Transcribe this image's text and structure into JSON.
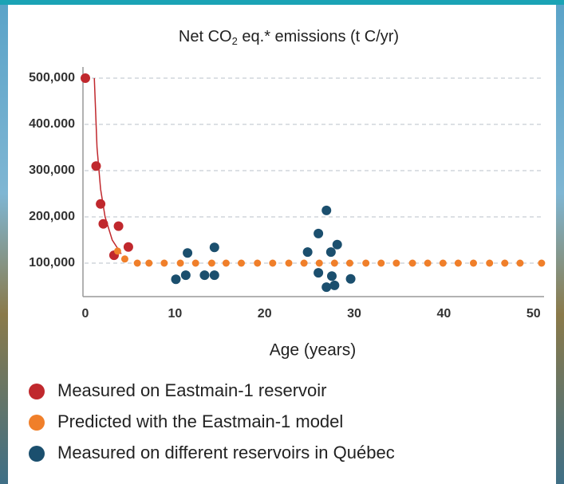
{
  "chart_data": {
    "type": "scatter",
    "title": {
      "main": "Net CO",
      "sub": "2",
      "rest": " eq.* emissions (t C/yr)"
    },
    "x_label": "Age (years)",
    "xlim": [
      0,
      51
    ],
    "xticks": [
      0,
      10,
      20,
      30,
      40,
      50
    ],
    "ylim": [
      30000,
      520000
    ],
    "yticks": [
      {
        "value": 100000,
        "label": "100,000"
      },
      {
        "value": 200000,
        "label": "200,000"
      },
      {
        "value": 300000,
        "label": "300,000"
      },
      {
        "value": 400000,
        "label": "400.000"
      },
      {
        "value": 500000,
        "label": "500,000"
      }
    ],
    "grid": true,
    "series": [
      {
        "name": "Measured on Eastmain-1 reservoir",
        "color": "#c0282d",
        "x": [
          0,
          1.2,
          1.7,
          2.0,
          3.2,
          3.7,
          4.8
        ],
        "values": [
          500000,
          310000,
          228000,
          185000,
          117000,
          180000,
          135000
        ]
      },
      {
        "name": "Predicted with the Eastmain-1 model",
        "color": "#f07f2a",
        "x": [
          3.6,
          4.4,
          5.8,
          7.1,
          8.8,
          10.6,
          12.3,
          14.1,
          15.7,
          17.4,
          19.2,
          20.9,
          22.7,
          24.4,
          26.1,
          27.8,
          29.5,
          31.3,
          33.0,
          34.7,
          36.5,
          38.2,
          39.9,
          41.6,
          43.3,
          45.1,
          46.8,
          48.5,
          50.9
        ],
        "values": [
          126000,
          109000,
          100000,
          100000,
          100000,
          100000,
          100000,
          100000,
          100000,
          100000,
          100000,
          100000,
          100000,
          100000,
          100000,
          100000,
          100000,
          100000,
          100000,
          100000,
          100000,
          100000,
          100000,
          100000,
          100000,
          100000,
          100000,
          100000,
          100000
        ]
      },
      {
        "name": "Measured on different reservoirs in Québec",
        "color": "#1b4f6e",
        "x": [
          10.1,
          11.2,
          11.4,
          13.3,
          14.4,
          14.4,
          24.8,
          26.0,
          26.0,
          26.9,
          27.4,
          26.9,
          27.5,
          27.8,
          28.1,
          29.6
        ],
        "values": [
          65000,
          74000,
          122000,
          74000,
          74000,
          134000,
          124000,
          164000,
          79000,
          214000,
          124000,
          48000,
          72000,
          52000,
          140000,
          66000
        ]
      }
    ],
    "fit": {
      "color": "#c0282d",
      "mode": "line",
      "x": [
        1.0,
        1.3,
        1.7,
        2.2,
        3.0,
        4.0
      ],
      "values": [
        500000,
        350000,
        260000,
        200000,
        150000,
        120000
      ]
    }
  }
}
